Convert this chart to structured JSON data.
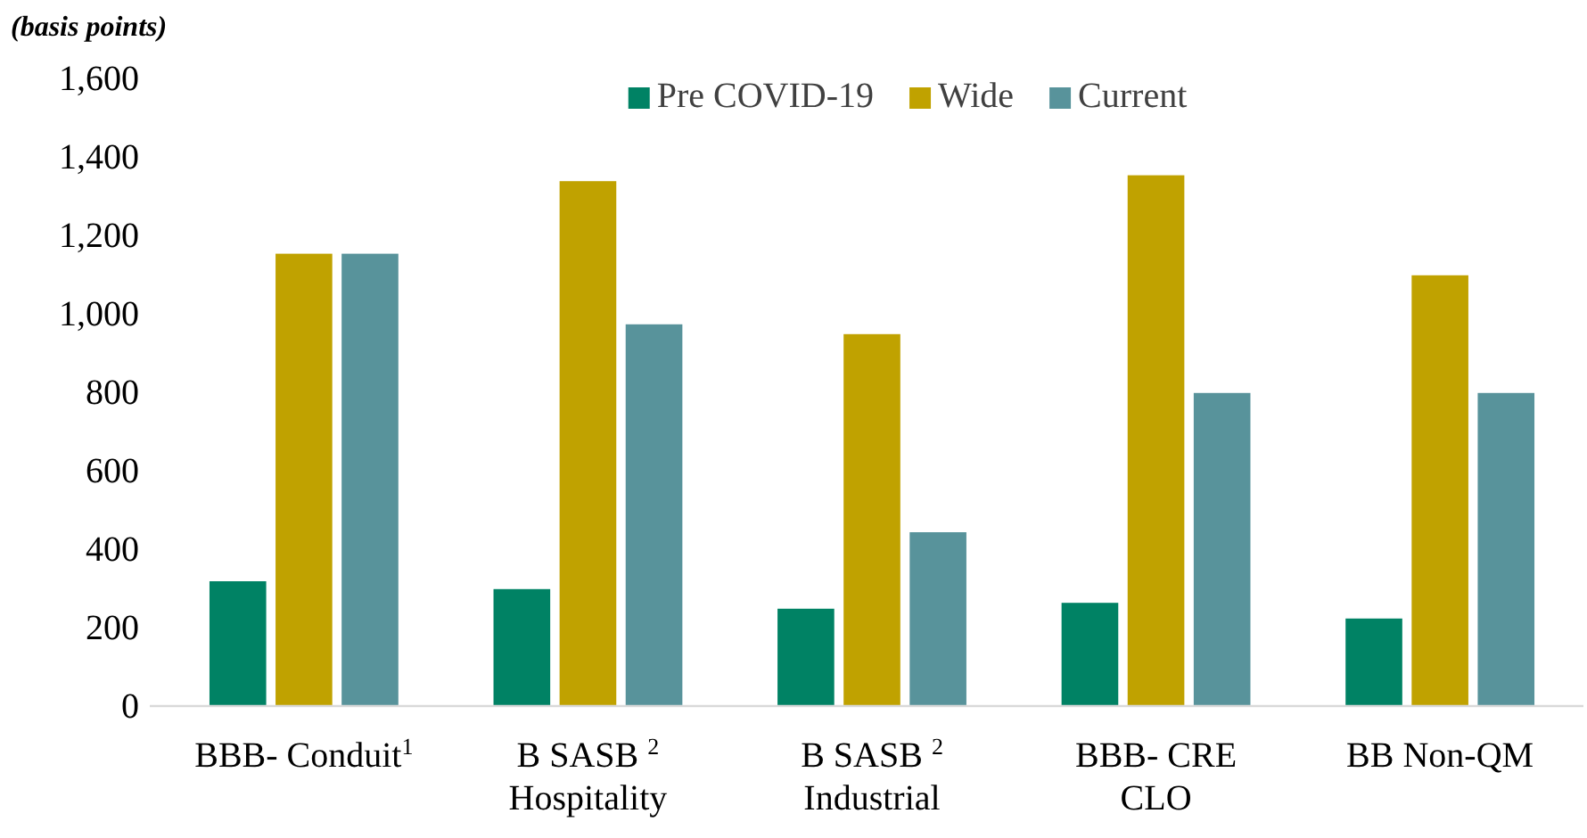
{
  "chart_data": {
    "type": "bar",
    "ylabel": "(basis points)",
    "categories": [
      "BBB- Conduit$^{1}$",
      "B SASB $^{2}$\nHospitality",
      "B SASB $^{2}$\nIndustrial",
      "BBB- CRE\nCLO",
      "BB Non-QM"
    ],
    "series": [
      {
        "name": "Pre COVID-19",
        "color": "#008264",
        "values": [
          320,
          300,
          250,
          265,
          225
        ]
      },
      {
        "name": "Wide",
        "color": "#c0a200",
        "values": [
          1155,
          1340,
          950,
          1355,
          1100
        ]
      },
      {
        "name": "Current",
        "color": "#58939b",
        "values": [
          1155,
          975,
          445,
          800,
          800
        ]
      }
    ],
    "ylim": [
      0,
      1600
    ],
    "yticks": [
      {
        "value": 0,
        "label": "0"
      },
      {
        "value": 200,
        "label": "200"
      },
      {
        "value": 400,
        "label": "400"
      },
      {
        "value": 600,
        "label": "600"
      },
      {
        "value": 800,
        "label": "800"
      },
      {
        "value": 1000,
        "label": "1,000"
      },
      {
        "value": 1200,
        "label": "1,200"
      },
      {
        "value": 1400,
        "label": "1,400"
      },
      {
        "value": 1600,
        "label": "1,600"
      }
    ],
    "grid": false,
    "legend": "top"
  }
}
